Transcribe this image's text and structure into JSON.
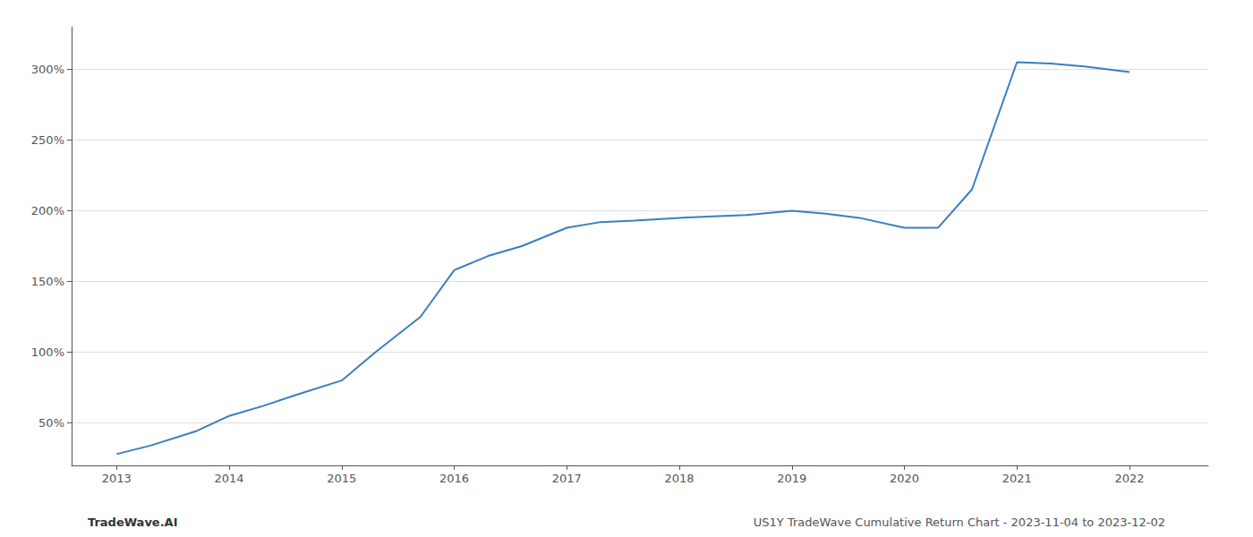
{
  "chart_data": {
    "type": "line",
    "x": [
      2013,
      2013.3,
      2013.7,
      2014,
      2014.3,
      2014.6,
      2015,
      2015.3,
      2015.7,
      2016,
      2016.3,
      2016.6,
      2017,
      2017.3,
      2017.6,
      2018,
      2018.3,
      2018.6,
      2019,
      2019.3,
      2019.6,
      2020,
      2020.3,
      2020.6,
      2021,
      2021.3,
      2021.6,
      2022
    ],
    "values": [
      28,
      34,
      44,
      55,
      62,
      70,
      80,
      100,
      125,
      158,
      168,
      175,
      188,
      192,
      193,
      195,
      196,
      197,
      200,
      198,
      195,
      188,
      188,
      215,
      305,
      304,
      302,
      298
    ],
    "color": "#3a7ebf",
    "xlim": [
      2012.6,
      2022.7
    ],
    "ylim": [
      20,
      330
    ],
    "xticks": [
      2013,
      2014,
      2015,
      2016,
      2017,
      2018,
      2019,
      2020,
      2021,
      2022
    ],
    "yticks": [
      {
        "value": 50,
        "label": "50%"
      },
      {
        "value": 100,
        "label": "100%"
      },
      {
        "value": 150,
        "label": "150%"
      },
      {
        "value": 200,
        "label": "200%"
      },
      {
        "value": 250,
        "label": "250%"
      },
      {
        "value": 300,
        "label": "300%"
      }
    ],
    "grid": true,
    "annotations": [
      "TradeWave.AI",
      "US1Y TradeWave Cumulative Return Chart - 2023-11-04 to 2023-12-02"
    ]
  }
}
